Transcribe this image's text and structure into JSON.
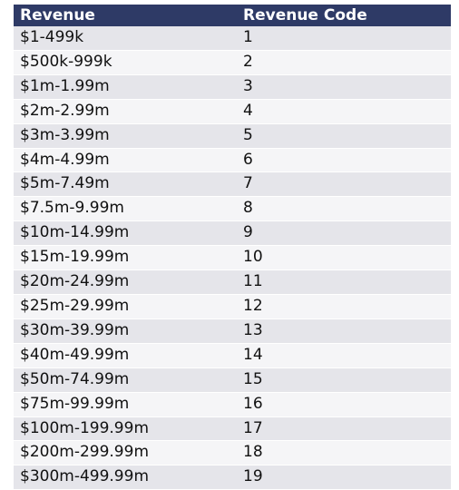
{
  "table": {
    "headers": [
      "Revenue",
      "Revenue Code"
    ],
    "rows": [
      [
        "$1-499k",
        "1"
      ],
      [
        "$500k-999k",
        "2"
      ],
      [
        "$1m-1.99m",
        "3"
      ],
      [
        "$2m-2.99m",
        "4"
      ],
      [
        "$3m-3.99m",
        "5"
      ],
      [
        "$4m-4.99m",
        "6"
      ],
      [
        "$5m-7.49m",
        "7"
      ],
      [
        "$7.5m-9.99m",
        "8"
      ],
      [
        "$10m-14.99m",
        "9"
      ],
      [
        "$15m-19.99m",
        "10"
      ],
      [
        "$20m-24.99m",
        "11"
      ],
      [
        "$25m-29.99m",
        "12"
      ],
      [
        "$30m-39.99m",
        "13"
      ],
      [
        "$40m-49.99m",
        "14"
      ],
      [
        "$50m-74.99m",
        "15"
      ],
      [
        "$75m-99.99m",
        "16"
      ],
      [
        "$100m-199.99m",
        "17"
      ],
      [
        "$200m-299.99m",
        "18"
      ],
      [
        "$300m-499.99m",
        "19"
      ]
    ]
  },
  "colors": {
    "header_bg": "#2e3a66",
    "header_text": "#ffffff",
    "row_odd_bg": "#e5e5ea",
    "row_even_bg": "#f5f5f7"
  }
}
